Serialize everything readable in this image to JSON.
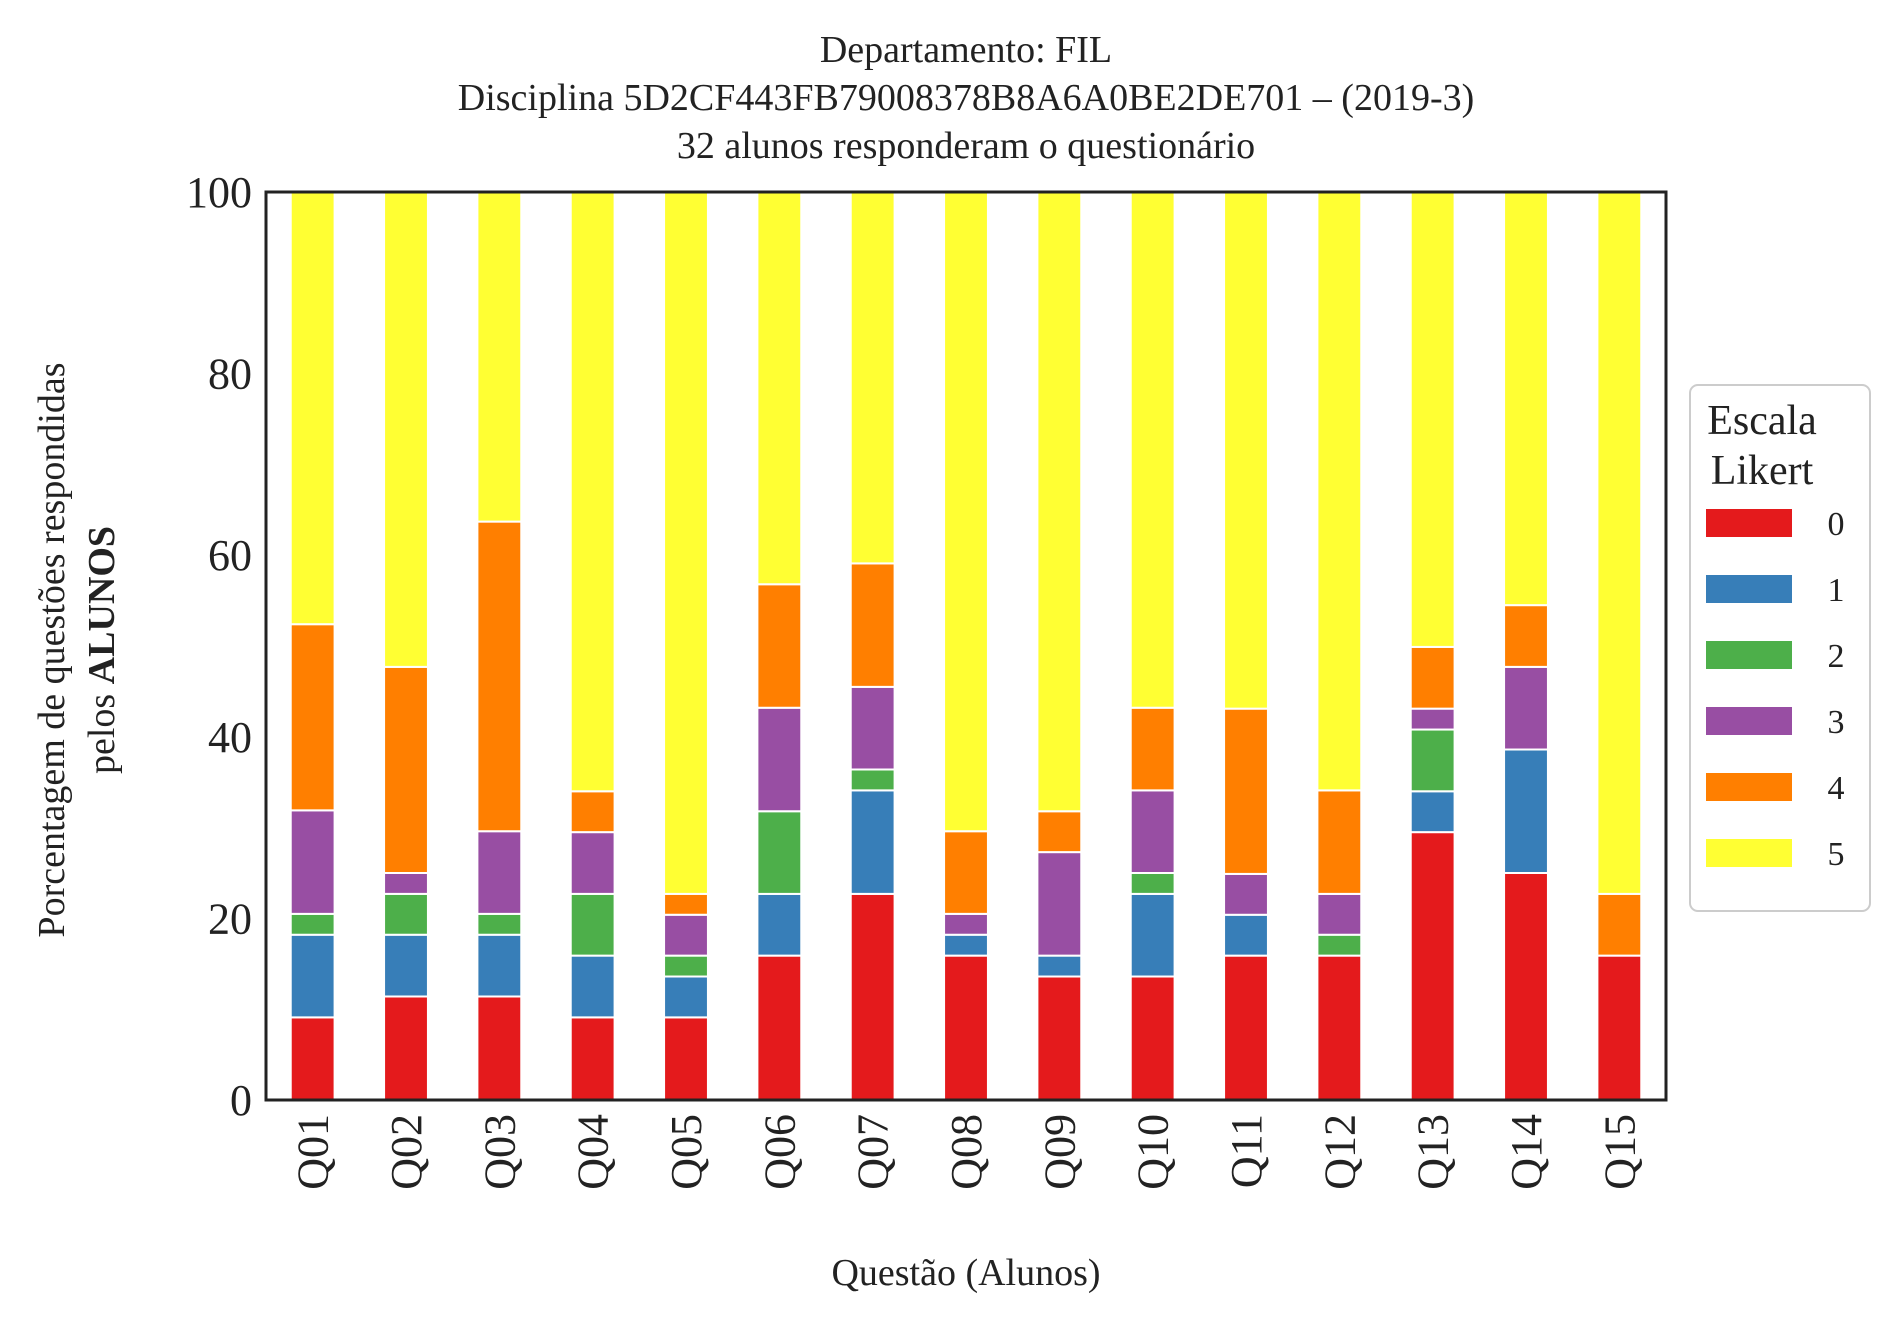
{
  "chart_data": {
    "type": "bar",
    "stacked": true,
    "title_lines": [
      "Departamento: FIL",
      "Disciplina 5D2CF443FB79008378B8A6A0BE2DE701 – (2019-3)",
      "32 alunos responderam o questionário"
    ],
    "xlabel": "Questão (Alunos)",
    "ylabel_line1": "Porcentagem de questões respondidas",
    "ylabel_line2_prefix": "pelos ",
    "ylabel_line2_bold": "ALUNOS",
    "ylim": [
      0,
      100
    ],
    "yticks": [
      "0",
      "20",
      "40",
      "60",
      "80",
      "100"
    ],
    "grid": false,
    "legend": {
      "title_line1": "Escala",
      "title_line2": "Likert",
      "placement": "center-right-outside"
    },
    "categories": [
      "Q01",
      "Q02",
      "Q03",
      "Q04",
      "Q05",
      "Q06",
      "Q07",
      "Q08",
      "Q09",
      "Q10",
      "Q11",
      "Q12",
      "Q13",
      "Q14",
      "Q15"
    ],
    "series": [
      {
        "name": "0",
        "color": "#e41a1c",
        "values": [
          9.1,
          11.4,
          11.4,
          9.1,
          9.1,
          15.9,
          22.7,
          15.9,
          13.6,
          13.6,
          15.9,
          15.9,
          29.5,
          25.0,
          15.9
        ]
      },
      {
        "name": "1",
        "color": "#377eb8",
        "values": [
          9.1,
          6.8,
          6.8,
          6.8,
          4.5,
          6.8,
          11.4,
          2.3,
          2.3,
          9.1,
          4.5,
          0,
          4.5,
          13.6,
          0
        ]
      },
      {
        "name": "2",
        "color": "#4daf4a",
        "values": [
          2.3,
          4.5,
          2.3,
          6.8,
          2.3,
          9.1,
          2.3,
          0,
          0,
          2.3,
          0,
          2.3,
          6.8,
          0,
          0
        ]
      },
      {
        "name": "3",
        "color": "#984ea3",
        "values": [
          11.4,
          2.3,
          9.1,
          6.8,
          4.5,
          11.4,
          9.1,
          2.3,
          11.4,
          9.1,
          4.5,
          4.5,
          2.3,
          9.1,
          0
        ]
      },
      {
        "name": "4",
        "color": "#ff7f00",
        "values": [
          20.5,
          22.7,
          34.1,
          4.5,
          2.3,
          13.6,
          13.6,
          9.1,
          4.5,
          9.1,
          18.2,
          11.4,
          6.8,
          6.8,
          6.8
        ]
      },
      {
        "name": "5",
        "color": "#ffff33",
        "values": [
          47.6,
          52.3,
          36.3,
          66.0,
          77.3,
          43.2,
          40.9,
          70.4,
          68.2,
          56.8,
          56.9,
          65.9,
          50.1,
          45.5,
          77.3
        ]
      }
    ]
  }
}
